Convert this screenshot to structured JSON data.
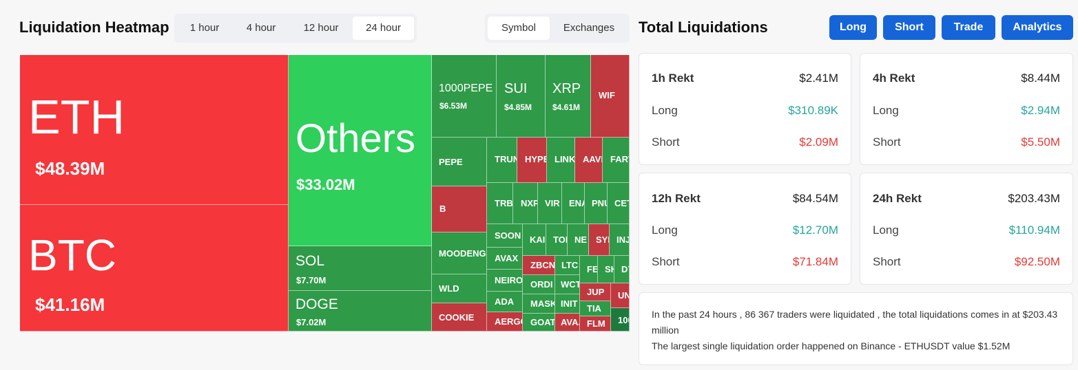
{
  "heatmap": {
    "title": "Liquidation Heatmap",
    "time_tabs": [
      "1 hour",
      "4 hour",
      "12 hour",
      "24 hour"
    ],
    "active_time_tab": "24 hour",
    "view_tabs": [
      "Symbol",
      "Exchanges"
    ],
    "active_view_tab": "Symbol",
    "big": [
      {
        "name": "ETH",
        "value": "$48.39M"
      },
      {
        "name": "BTC",
        "value": "$41.16M"
      },
      {
        "name": "Others",
        "value": "$33.02M"
      },
      {
        "name": "SOL",
        "value": "$7.70M"
      },
      {
        "name": "DOGE",
        "value": "$7.02M"
      }
    ],
    "mid": [
      {
        "name": "1000PEPE",
        "value": "$6.53M"
      },
      {
        "name": "SUI",
        "value": "$4.85M"
      },
      {
        "name": "XRP",
        "value": "$4.61M"
      },
      {
        "name": "WIF",
        "value": ""
      }
    ],
    "small": [
      "PEPE",
      "B",
      "MOODENG",
      "WLD",
      "COOKIE",
      "TRUN",
      "HYPE",
      "LINK",
      "AAVI",
      "FART",
      "TRB",
      "NXP",
      "VIR",
      "ENA",
      "PNU",
      "CET",
      "SOON",
      "KAI",
      "TOI",
      "NE",
      "SYI",
      "INJ",
      "AVAX",
      "ZBCN",
      "LTC",
      "FE",
      "SH",
      "DY",
      "NEIRO",
      "ORDI",
      "WCT",
      "ADA",
      "MASK",
      "INIT",
      "JUP",
      "UN",
      "AERGO",
      "GOAT",
      "AVAA",
      "TIA",
      "FLM",
      "100"
    ]
  },
  "totals": {
    "title": "Total Liquidations",
    "buttons": [
      "Long",
      "Short",
      "Trade",
      "Analytics"
    ],
    "cards": [
      {
        "label": "1h Rekt",
        "total": "$2.41M",
        "long_label": "Long",
        "long": "$310.89K",
        "short_label": "Short",
        "short": "$2.09M"
      },
      {
        "label": "4h Rekt",
        "total": "$8.44M",
        "long_label": "Long",
        "long": "$2.94M",
        "short_label": "Short",
        "short": "$5.50M"
      },
      {
        "label": "12h Rekt",
        "total": "$84.54M",
        "long_label": "Long",
        "long": "$12.70M",
        "short_label": "Short",
        "short": "$71.84M"
      },
      {
        "label": "24h Rekt",
        "total": "$203.43M",
        "long_label": "Long",
        "long": "$110.94M",
        "short_label": "Short",
        "short": "$92.50M"
      }
    ],
    "summary_line1": "In the past 24 hours , 86 367 traders were liquidated , the total liquidations comes in at $203.43 million",
    "summary_line2": "The largest single liquidation order happened on Binance - ETHUSDT value $1.52M"
  },
  "colors": {
    "red": "#f5363b",
    "bright_green": "#2ecf5b",
    "green": "#2f9a48",
    "dark_red": "#c0393f",
    "dark_green": "#1e7a3c",
    "button": "#1565d8"
  }
}
